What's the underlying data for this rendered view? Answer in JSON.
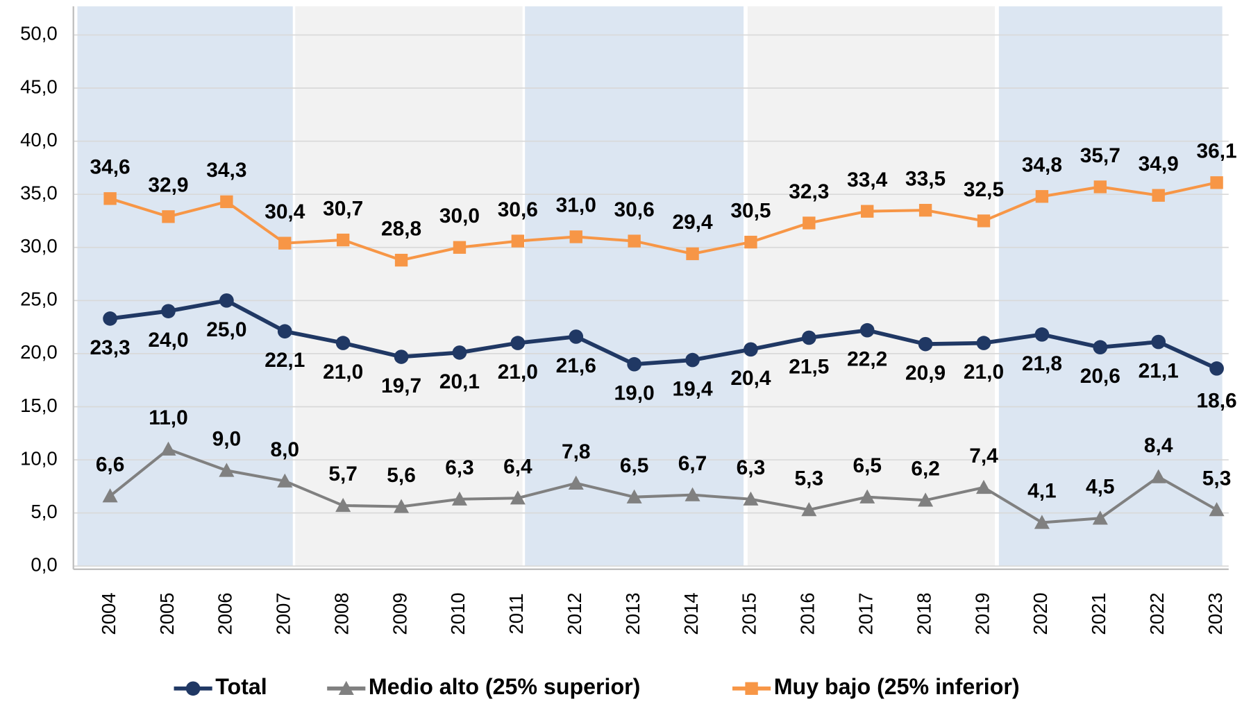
{
  "chart_data": {
    "type": "line",
    "categories": [
      "2004",
      "2005",
      "2006",
      "2007",
      "2008",
      "2009",
      "2010",
      "2011",
      "2012",
      "2013",
      "2014",
      "2015",
      "2016",
      "2017",
      "2018",
      "2019",
      "2020",
      "2021",
      "2022",
      "2023"
    ],
    "series": [
      {
        "name": "Total",
        "color": "#203864",
        "marker": "circle",
        "values": [
          23.3,
          24.0,
          25.0,
          22.1,
          21.0,
          19.7,
          20.1,
          21.0,
          21.6,
          19.0,
          19.4,
          20.4,
          21.5,
          22.2,
          20.9,
          21.0,
          21.8,
          20.6,
          21.1,
          18.6
        ],
        "value_labels": [
          "23,3",
          "24,0",
          "25,0",
          "22,1",
          "21,0",
          "19,7",
          "20,1",
          "21,0",
          "21,6",
          "19,0",
          "19,4",
          "20,4",
          "21,5",
          "22,2",
          "20,9",
          "21,0",
          "21,8",
          "20,6",
          "21,1",
          "18,6"
        ]
      },
      {
        "name": "Medio alto (25% superior)",
        "color": "#808080",
        "marker": "triangle",
        "values": [
          6.6,
          11.0,
          9.0,
          8.0,
          5.7,
          5.6,
          6.3,
          6.4,
          7.8,
          6.5,
          6.7,
          6.3,
          5.3,
          6.5,
          6.2,
          7.4,
          4.1,
          4.5,
          8.4,
          5.3
        ],
        "value_labels": [
          "6,6",
          "11,0",
          "9,0",
          "8,0",
          "5,7",
          "5,6",
          "6,3",
          "6,4",
          "7,8",
          "6,5",
          "6,7",
          "6,3",
          "5,3",
          "6,5",
          "6,2",
          "7,4",
          "4,1",
          "4,5",
          "8,4",
          "5,3"
        ]
      },
      {
        "name": "Muy bajo (25% inferior)",
        "color": "#f79646",
        "marker": "square",
        "values": [
          34.6,
          32.9,
          34.3,
          30.4,
          30.7,
          28.8,
          30.0,
          30.6,
          31.0,
          30.6,
          29.4,
          30.5,
          32.3,
          33.4,
          33.5,
          32.5,
          34.8,
          35.7,
          34.9,
          36.1
        ],
        "value_labels": [
          "34,6",
          "32,9",
          "34,3",
          "30,4",
          "30,7",
          "28,8",
          "30,0",
          "30,6",
          "31,0",
          "30,6",
          "29,4",
          "30,5",
          "32,3",
          "33,4",
          "33,5",
          "32,5",
          "34,8",
          "35,7",
          "34,9",
          "36,1"
        ]
      }
    ],
    "ylim": [
      0,
      50
    ],
    "yticks": [
      {
        "value": 0,
        "label": "0,0"
      },
      {
        "value": 5,
        "label": "5,0"
      },
      {
        "value": 10,
        "label": "10,0"
      },
      {
        "value": 15,
        "label": "15,0"
      },
      {
        "value": 20,
        "label": "20,0"
      },
      {
        "value": 25,
        "label": "25,0"
      },
      {
        "value": 30,
        "label": "30,0"
      },
      {
        "value": 35,
        "label": "35,0"
      },
      {
        "value": 40,
        "label": "40,0"
      },
      {
        "value": 45,
        "label": "45,0"
      },
      {
        "value": 50,
        "label": "50,0"
      }
    ],
    "grid": true,
    "legend": "bottom"
  }
}
